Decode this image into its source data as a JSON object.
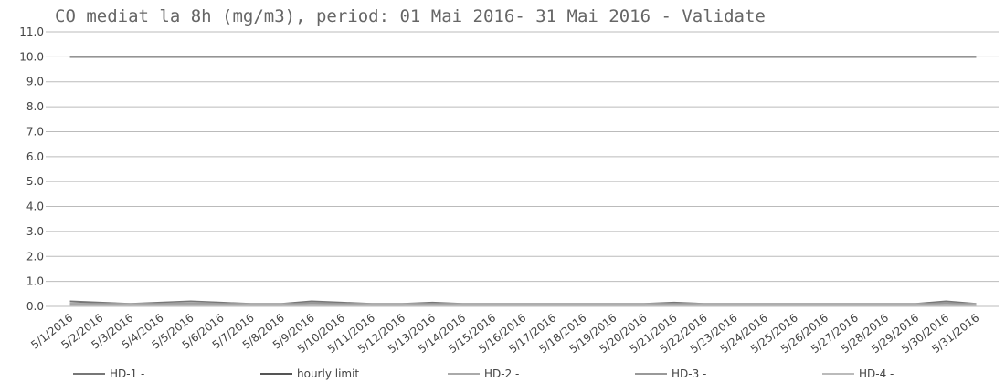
{
  "chart_data": {
    "type": "line",
    "title": "CO mediat la 8h (mg/m3), period: 01 Mai 2016- 31 Mai 2016 - Validate",
    "categories": [
      "5/1/2016",
      "5/2/2016",
      "5/3/2016",
      "5/4/2016",
      "5/5/2016",
      "5/6/2016",
      "5/7/2016",
      "5/8/2016",
      "5/9/2016",
      "5/10/2016",
      "5/11/2016",
      "5/12/2016",
      "5/13/2016",
      "5/14/2016",
      "5/15/2016",
      "5/16/2016",
      "5/17/2016",
      "5/18/2016",
      "5/19/2016",
      "5/20/2016",
      "5/21/2016",
      "5/22/2016",
      "5/23/2016",
      "5/24/2016",
      "5/25/2016",
      "5/26/2016",
      "5/27/2016",
      "5/28/2016",
      "5/29/2016",
      "5/30/2016",
      "5/31/2016"
    ],
    "series": [
      {
        "name": "HD-1 -",
        "color": "#777777",
        "values": [
          0.2,
          0.15,
          0.1,
          0.15,
          0.2,
          0.15,
          0.1,
          0.1,
          0.2,
          0.15,
          0.1,
          0.1,
          0.15,
          0.1,
          0.1,
          0.1,
          0.1,
          0.1,
          0.1,
          0.1,
          0.15,
          0.1,
          0.1,
          0.1,
          0.1,
          0.1,
          0.1,
          0.1,
          0.1,
          0.2,
          0.1
        ]
      },
      {
        "name": "hourly limit",
        "color": "#555555",
        "values": [
          10,
          10,
          10,
          10,
          10,
          10,
          10,
          10,
          10,
          10,
          10,
          10,
          10,
          10,
          10,
          10,
          10,
          10,
          10,
          10,
          10,
          10,
          10,
          10,
          10,
          10,
          10,
          10,
          10,
          10,
          10
        ]
      },
      {
        "name": "HD-2 -",
        "color": "#aaaaaa",
        "values": [
          0.1,
          0.1,
          0.1,
          0.1,
          0.15,
          0.1,
          0.1,
          0.1,
          0.1,
          0.1,
          0.1,
          0.1,
          0.1,
          0.1,
          0.1,
          0.1,
          0.1,
          0.1,
          0.1,
          0.1,
          0.1,
          0.1,
          0.1,
          0.1,
          0.1,
          0.1,
          0.1,
          0.1,
          0.1,
          0.1,
          0.1
        ]
      },
      {
        "name": "HD-3 -",
        "color": "#999999",
        "values": [
          0.1,
          0.1,
          0.05,
          0.1,
          0.1,
          0.1,
          0.05,
          0.05,
          0.15,
          0.1,
          0.05,
          0.05,
          0.1,
          0.05,
          0.05,
          0.05,
          0.05,
          0.05,
          0.05,
          0.05,
          0.1,
          0.05,
          0.05,
          0.05,
          0.05,
          0.05,
          0.05,
          0.05,
          0.05,
          0.15,
          0.05
        ]
      },
      {
        "name": "HD-4 -",
        "color": "#bbbbbb",
        "values": [
          0.05,
          0.05,
          0.05,
          0.05,
          0.05,
          0.05,
          0.05,
          0.05,
          0.05,
          0.05,
          0.05,
          0.05,
          0.05,
          0.05,
          0.05,
          0.05,
          0.05,
          0.05,
          0.05,
          0.05,
          0.05,
          0.05,
          0.05,
          0.05,
          0.05,
          0.05,
          0.05,
          0.05,
          0.05,
          0.05,
          0.05
        ]
      }
    ],
    "ylim": [
      0,
      11
    ],
    "yticks": [
      {
        "value": 0,
        "label": "0.0"
      },
      {
        "value": 1,
        "label": "1.0"
      },
      {
        "value": 2,
        "label": "2.0"
      },
      {
        "value": 3,
        "label": "3.0"
      },
      {
        "value": 4,
        "label": "4.0"
      },
      {
        "value": 5,
        "label": "5.0"
      },
      {
        "value": 6,
        "label": "6.0"
      },
      {
        "value": 7,
        "label": "7.0"
      },
      {
        "value": 8,
        "label": "8.0"
      },
      {
        "value": 9,
        "label": "9.0"
      },
      {
        "value": 10,
        "label": "10.0"
      },
      {
        "value": 11,
        "label": "11.0"
      }
    ],
    "grid": true
  }
}
